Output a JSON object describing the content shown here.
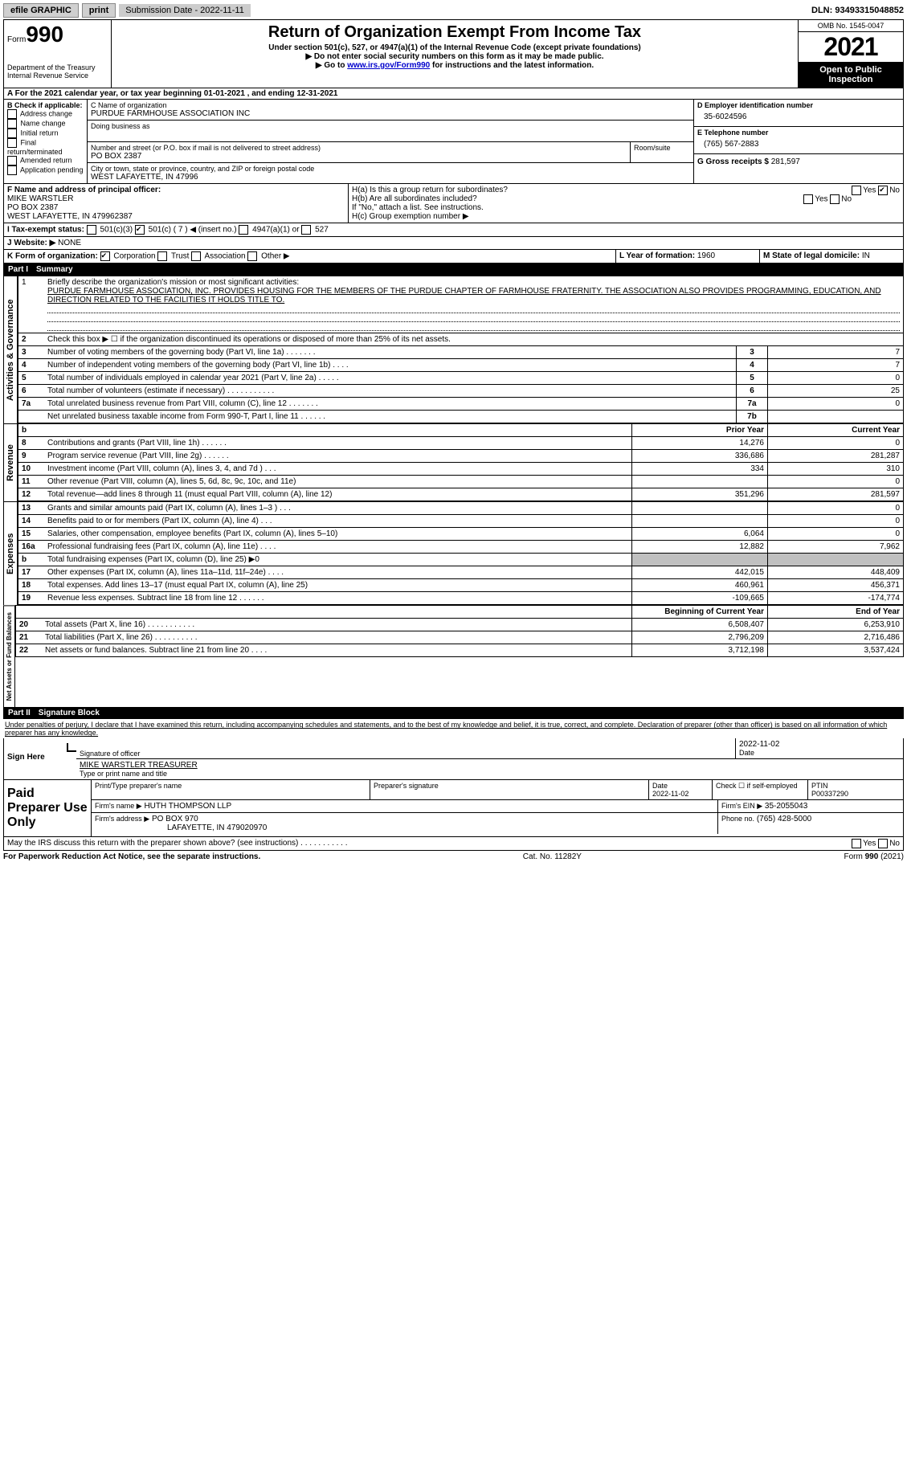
{
  "topbar": {
    "efile": "efile GRAPHIC",
    "print": "print",
    "submission": "Submission Date - 2022-11-11",
    "dln": "DLN: 93493315048852"
  },
  "header": {
    "form_prefix": "Form",
    "form_number": "990",
    "title": "Return of Organization Exempt From Income Tax",
    "subtitle": "Under section 501(c), 527, or 4947(a)(1) of the Internal Revenue Code (except private foundations)",
    "warn": "▶ Do not enter social security numbers on this form as it may be made public.",
    "goto_prefix": "▶ Go to ",
    "goto_link": "www.irs.gov/Form990",
    "goto_suffix": " for instructions and the latest information.",
    "dept": "Department of the Treasury",
    "irs": "Internal Revenue Service",
    "omb": "OMB No. 1545-0047",
    "year": "2021",
    "inspect1": "Open to Public",
    "inspect2": "Inspection"
  },
  "lineA": {
    "text": "A For the 2021 calendar year, or tax year beginning 01-01-2021   , and ending 12-31-2021"
  },
  "boxB": {
    "label": "B Check if applicable:",
    "items": [
      "Address change",
      "Name change",
      "Initial return",
      "Final return/terminated",
      "Amended return",
      "Application pending"
    ]
  },
  "boxC": {
    "name_label": "C Name of organization",
    "name": "PURDUE FARMHOUSE ASSOCIATION INC",
    "dba_label": "Doing business as",
    "street_label": "Number and street (or P.O. box if mail is not delivered to street address)",
    "room_label": "Room/suite",
    "street": "PO BOX 2387",
    "city_label": "City or town, state or province, country, and ZIP or foreign postal code",
    "city": "WEST LAFAYETTE, IN  47996"
  },
  "boxD": {
    "label": "D Employer identification number",
    "value": "35-6024596"
  },
  "boxE": {
    "label": "E Telephone number",
    "value": "(765) 567-2883"
  },
  "boxG": {
    "label": "G Gross receipts $",
    "value": "281,597"
  },
  "boxF": {
    "label": "F Name and address of principal officer:",
    "name": "MIKE WARSTLER",
    "addr1": "PO BOX 2387",
    "addr2": "WEST LAFAYETTE, IN  479962387"
  },
  "boxH": {
    "ha": "H(a)  Is this a group return for subordinates?",
    "hb": "H(b)  Are all subordinates included?",
    "hb_note": "If \"No,\" attach a list. See instructions.",
    "hc": "H(c)  Group exemption number ▶",
    "yes": "Yes",
    "no": "No"
  },
  "boxI": {
    "label": "I   Tax-exempt status:",
    "o1": "501(c)(3)",
    "o2": "501(c) ( 7 ) ◀ (insert no.)",
    "o3": "4947(a)(1) or",
    "o4": "527"
  },
  "boxJ": {
    "label": "J   Website: ▶",
    "value": "NONE"
  },
  "boxK": {
    "label": "K Form of organization:",
    "o1": "Corporation",
    "o2": "Trust",
    "o3": "Association",
    "o4": "Other ▶"
  },
  "boxL": {
    "label": "L Year of formation:",
    "value": "1960"
  },
  "boxM": {
    "label": "M State of legal domicile:",
    "value": "IN"
  },
  "part1": {
    "label": "Part I",
    "title": "Summary"
  },
  "summary": {
    "q1_label": "1",
    "q1_text": "Briefly describe the organization's mission or most significant activities:",
    "q1_value": "PURDUE FARMHOUSE ASSOCIATION, INC. PROVIDES HOUSING FOR THE MEMBERS OF THE PURDUE CHAPTER OF FARMHOUSE FRATERNITY. THE ASSOCIATION ALSO PROVIDES PROGRAMMING, EDUCATION, AND DIRECTION RELATED TO THE FACILITIES IT HOLDS TITLE TO.",
    "q2_text": "Check this box ▶ ☐ if the organization discontinued its operations or disposed of more than 25% of its net assets.",
    "rows": [
      {
        "n": "3",
        "t": "Number of voting members of the governing body (Part VI, line 1a)   .    .    .    .    .    .    .",
        "box": "3",
        "v": "7"
      },
      {
        "n": "4",
        "t": "Number of independent voting members of the governing body (Part VI, line 1b)   .    .    .    .",
        "box": "4",
        "v": "7"
      },
      {
        "n": "5",
        "t": "Total number of individuals employed in calendar year 2021 (Part V, line 2a)   .    .    .    .    .",
        "box": "5",
        "v": "0"
      },
      {
        "n": "6",
        "t": "Total number of volunteers (estimate if necessary)    .    .    .    .    .    .    .    .    .    .    .",
        "box": "6",
        "v": "25"
      },
      {
        "n": "7a",
        "t": "Total unrelated business revenue from Part VIII, column (C), line 12   .    .    .    .    .    .    .",
        "box": "7a",
        "v": "0"
      },
      {
        "n": "",
        "t": "Net unrelated business taxable income from Form 990-T, Part I, line 11   .    .    .    .    .    .",
        "box": "7b",
        "v": ""
      }
    ]
  },
  "finance": {
    "headers": {
      "prior": "Prior Year",
      "current": "Current Year",
      "begin": "Beginning of Current Year",
      "end": "End of Year"
    },
    "revenue_rows": [
      {
        "n": "8",
        "t": "Contributions and grants (Part VIII, line 1h)   .    .    .    .    .    .",
        "p": "14,276",
        "c": "0"
      },
      {
        "n": "9",
        "t": "Program service revenue (Part VIII, line 2g)    .    .    .    .    .    .",
        "p": "336,686",
        "c": "281,287"
      },
      {
        "n": "10",
        "t": "Investment income (Part VIII, column (A), lines 3, 4, and 7d )   .    .    .",
        "p": "334",
        "c": "310"
      },
      {
        "n": "11",
        "t": "Other revenue (Part VIII, column (A), lines 5, 6d, 8c, 9c, 10c, and 11e)",
        "p": "",
        "c": "0"
      },
      {
        "n": "12",
        "t": "Total revenue—add lines 8 through 11 (must equal Part VIII, column (A), line 12)",
        "p": "351,296",
        "c": "281,597"
      }
    ],
    "expense_rows": [
      {
        "n": "13",
        "t": "Grants and similar amounts paid (Part IX, column (A), lines 1–3 )   .    .    .",
        "p": "",
        "c": "0"
      },
      {
        "n": "14",
        "t": "Benefits paid to or for members (Part IX, column (A), line 4)   .    .    .",
        "p": "",
        "c": "0"
      },
      {
        "n": "15",
        "t": "Salaries, other compensation, employee benefits (Part IX, column (A), lines 5–10)",
        "p": "6,064",
        "c": "0"
      },
      {
        "n": "16a",
        "t": "Professional fundraising fees (Part IX, column (A), line 11e)   .    .    .    .",
        "p": "12,882",
        "c": "7,962"
      },
      {
        "n": "b",
        "t": "Total fundraising expenses (Part IX, column (D), line 25) ▶0",
        "p": "shade",
        "c": "shade"
      },
      {
        "n": "17",
        "t": "Other expenses (Part IX, column (A), lines 11a–11d, 11f–24e)   .    .    .    .",
        "p": "442,015",
        "c": "448,409"
      },
      {
        "n": "18",
        "t": "Total expenses. Add lines 13–17 (must equal Part IX, column (A), line 25)",
        "p": "460,961",
        "c": "456,371"
      },
      {
        "n": "19",
        "t": "Revenue less expenses. Subtract line 18 from line 12    .    .    .    .    .    .",
        "p": "-109,665",
        "c": "-174,774"
      }
    ],
    "net_rows": [
      {
        "n": "20",
        "t": "Total assets (Part X, line 16)   .    .    .    .    .    .    .    .    .    .    .",
        "p": "6,508,407",
        "c": "6,253,910"
      },
      {
        "n": "21",
        "t": "Total liabilities (Part X, line 26)   .    .    .    .    .    .    .    .    .    .",
        "p": "2,796,209",
        "c": "2,716,486"
      },
      {
        "n": "22",
        "t": "Net assets or fund balances. Subtract line 21 from line 20    .    .    .    .",
        "p": "3,712,198",
        "c": "3,537,424"
      }
    ]
  },
  "part2": {
    "label": "Part II",
    "title": "Signature Block"
  },
  "sig": {
    "perjury": "Under penalties of perjury, I declare that I have examined this return, including accompanying schedules and statements, and to the best of my knowledge and belief, it is true, correct, and complete. Declaration of preparer (other than officer) is based on all information of which preparer has any knowledge.",
    "sign_here": "Sign Here",
    "sig_officer": "Signature of officer",
    "date": "Date",
    "sig_date": "2022-11-02",
    "name_title": "MIKE WARSTLER  TREASURER",
    "type_name": "Type or print name and title",
    "paid": "Paid Preparer Use Only",
    "print_name_label": "Print/Type preparer's name",
    "prep_sig_label": "Preparer's signature",
    "prep_date_label": "Date",
    "prep_date": "2022-11-02",
    "check_self": "Check ☐ if self-employed",
    "ptin_label": "PTIN",
    "ptin": "P00337290",
    "firm_name_label": "Firm's name    ▶",
    "firm_name": "HUTH THOMPSON LLP",
    "firm_ein_label": "Firm's EIN ▶",
    "firm_ein": "35-2055043",
    "firm_addr_label": "Firm's address ▶",
    "firm_addr": "PO BOX 970",
    "firm_city": "LAFAYETTE, IN  479020970",
    "phone_label": "Phone no.",
    "phone": "(765) 428-5000",
    "discuss": "May the IRS discuss this return with the preparer shown above? (see instructions)    .    .    .    .    .    .    .    .    .    .    .",
    "yes": "Yes",
    "no": "No"
  },
  "footer": {
    "left": "For Paperwork Reduction Act Notice, see the separate instructions.",
    "mid": "Cat. No. 11282Y",
    "right": "Form 990 (2021)"
  },
  "vlabels": {
    "gov": "Activities & Governance",
    "rev": "Revenue",
    "exp": "Expenses",
    "net": "Net Assets or Fund Balances"
  }
}
